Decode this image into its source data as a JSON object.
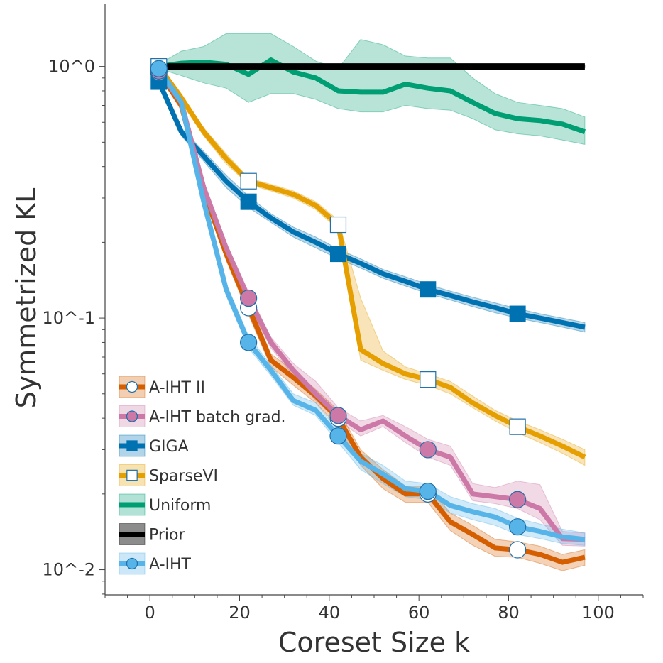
{
  "chart_data": {
    "type": "line",
    "xlabel": "Coreset Size k",
    "ylabel": "Symmetrized KL",
    "xlim": [
      -10,
      110
    ],
    "ylim_log10": [
      -2.1,
      0.25
    ],
    "y_scale": "log",
    "x_ticks": [
      0,
      20,
      40,
      60,
      80,
      100
    ],
    "x_tick_labels": [
      "0",
      "20",
      "40",
      "60",
      "80",
      "100"
    ],
    "y_ticks_log10": [
      0,
      -1,
      -2
    ],
    "y_tick_labels": [
      "10^0",
      "10^-1",
      "10^-2"
    ],
    "legend_position": "bottom-left",
    "series": [
      {
        "name": "Uniform",
        "color": "#009e73",
        "marker": "none",
        "x": [
          2,
          7,
          12,
          17,
          22,
          27,
          32,
          37,
          42,
          47,
          52,
          57,
          62,
          67,
          72,
          77,
          82,
          87,
          92,
          97
        ],
        "y": [
          1.0,
          1.03,
          1.04,
          1.02,
          0.93,
          1.06,
          0.95,
          0.9,
          0.8,
          0.79,
          0.79,
          0.85,
          0.82,
          0.8,
          0.72,
          0.65,
          0.62,
          0.61,
          0.59,
          0.55
        ],
        "y_low": [
          0.98,
          0.92,
          0.86,
          0.82,
          0.72,
          0.78,
          0.78,
          0.74,
          0.68,
          0.66,
          0.66,
          0.7,
          0.68,
          0.67,
          0.62,
          0.56,
          0.54,
          0.53,
          0.51,
          0.49
        ],
        "y_high": [
          1.02,
          1.15,
          1.2,
          1.35,
          1.35,
          1.35,
          1.2,
          1.05,
          0.98,
          1.28,
          1.22,
          1.1,
          1.08,
          1.08,
          0.9,
          0.78,
          0.72,
          0.7,
          0.68,
          0.63
        ],
        "marker_x": []
      },
      {
        "name": "Prior",
        "color": "#000000",
        "marker": "none",
        "x": [
          2,
          97
        ],
        "y": [
          1.0,
          1.0
        ],
        "y_low": [
          0.99,
          0.99
        ],
        "y_high": [
          1.01,
          1.01
        ],
        "marker_x": []
      },
      {
        "name": "GIGA",
        "color": "#0072b2",
        "marker": "square-filled",
        "x": [
          2,
          7,
          12,
          17,
          22,
          27,
          32,
          37,
          42,
          47,
          52,
          57,
          62,
          67,
          72,
          77,
          82,
          87,
          92,
          97
        ],
        "y": [
          0.87,
          0.55,
          0.44,
          0.35,
          0.29,
          0.25,
          0.22,
          0.2,
          0.18,
          0.165,
          0.15,
          0.14,
          0.13,
          0.123,
          0.116,
          0.11,
          0.104,
          0.1,
          0.096,
          0.092
        ],
        "y_low": [
          0.84,
          0.53,
          0.42,
          0.33,
          0.275,
          0.24,
          0.21,
          0.19,
          0.172,
          0.158,
          0.144,
          0.134,
          0.125,
          0.118,
          0.111,
          0.105,
          0.1,
          0.096,
          0.092,
          0.088
        ],
        "y_high": [
          0.9,
          0.57,
          0.46,
          0.37,
          0.305,
          0.26,
          0.23,
          0.21,
          0.188,
          0.172,
          0.156,
          0.146,
          0.136,
          0.128,
          0.121,
          0.115,
          0.109,
          0.104,
          0.1,
          0.096
        ],
        "marker_x": [
          2,
          22,
          42,
          62,
          82
        ]
      },
      {
        "name": "SparseVI",
        "color": "#e69f00",
        "marker": "square-open",
        "x": [
          2,
          7,
          12,
          17,
          22,
          27,
          32,
          37,
          42,
          47,
          52,
          57,
          62,
          67,
          72,
          77,
          82,
          87,
          92,
          97
        ],
        "y": [
          1.0,
          0.75,
          0.55,
          0.43,
          0.35,
          0.33,
          0.31,
          0.28,
          0.235,
          0.075,
          0.066,
          0.06,
          0.057,
          0.053,
          0.046,
          0.041,
          0.037,
          0.034,
          0.031,
          0.028
        ],
        "y_low": [
          0.97,
          0.72,
          0.53,
          0.41,
          0.34,
          0.32,
          0.3,
          0.27,
          0.225,
          0.068,
          0.062,
          0.057,
          0.054,
          0.05,
          0.044,
          0.039,
          0.035,
          0.032,
          0.029,
          0.026
        ],
        "y_high": [
          1.03,
          0.78,
          0.57,
          0.45,
          0.36,
          0.34,
          0.32,
          0.29,
          0.245,
          0.12,
          0.074,
          0.064,
          0.06,
          0.056,
          0.049,
          0.043,
          0.039,
          0.036,
          0.033,
          0.03
        ],
        "marker_x": [
          2,
          22,
          42,
          62,
          82
        ]
      },
      {
        "name": "A-IHT II",
        "color": "#d55e00",
        "marker": "circle-open",
        "x": [
          2,
          7,
          12,
          17,
          22,
          27,
          32,
          37,
          42,
          47,
          52,
          57,
          62,
          67,
          72,
          77,
          82,
          87,
          92,
          97
        ],
        "y": [
          0.95,
          0.7,
          0.32,
          0.18,
          0.11,
          0.068,
          0.058,
          0.049,
          0.04,
          0.028,
          0.023,
          0.02,
          0.02,
          0.0155,
          0.0138,
          0.0122,
          0.012,
          0.0115,
          0.0107,
          0.0112
        ],
        "y_low": [
          0.92,
          0.67,
          0.3,
          0.17,
          0.103,
          0.064,
          0.054,
          0.046,
          0.037,
          0.026,
          0.021,
          0.0185,
          0.0185,
          0.0143,
          0.0125,
          0.0113,
          0.0112,
          0.0106,
          0.0099,
          0.0104
        ],
        "y_high": [
          0.98,
          0.73,
          0.34,
          0.19,
          0.118,
          0.072,
          0.062,
          0.052,
          0.043,
          0.03,
          0.025,
          0.0215,
          0.0215,
          0.0168,
          0.015,
          0.0132,
          0.0129,
          0.0124,
          0.0115,
          0.012
        ],
        "marker_x": [
          2,
          22,
          42,
          62,
          82
        ]
      },
      {
        "name": "A-IHT batch grad.",
        "color": "#cc79a7",
        "marker": "circle-filled",
        "x": [
          2,
          7,
          12,
          17,
          22,
          27,
          32,
          37,
          42,
          47,
          52,
          57,
          62,
          67,
          72,
          77,
          82,
          87,
          92,
          97
        ],
        "y": [
          0.96,
          0.72,
          0.33,
          0.19,
          0.12,
          0.08,
          0.062,
          0.05,
          0.041,
          0.036,
          0.039,
          0.034,
          0.03,
          0.028,
          0.02,
          0.0195,
          0.019,
          0.0175,
          0.0133,
          0.0132
        ],
        "y_low": [
          0.93,
          0.69,
          0.31,
          0.18,
          0.113,
          0.076,
          0.059,
          0.047,
          0.039,
          0.034,
          0.037,
          0.032,
          0.028,
          0.026,
          0.0188,
          0.0183,
          0.0175,
          0.0158,
          0.0125,
          0.0124
        ],
        "y_high": [
          0.99,
          0.75,
          0.35,
          0.2,
          0.127,
          0.084,
          0.066,
          0.056,
          0.044,
          0.039,
          0.041,
          0.037,
          0.033,
          0.031,
          0.022,
          0.0212,
          0.0225,
          0.0218,
          0.0142,
          0.014
        ],
        "marker_x": [
          2,
          22,
          42,
          62,
          82
        ]
      },
      {
        "name": "A-IHT",
        "color": "#56b4e9",
        "marker": "circle-filled",
        "x": [
          2,
          7,
          12,
          17,
          22,
          27,
          32,
          37,
          42,
          47,
          52,
          57,
          62,
          67,
          72,
          77,
          82,
          87,
          92,
          97
        ],
        "y": [
          0.98,
          0.72,
          0.29,
          0.13,
          0.08,
          0.062,
          0.047,
          0.043,
          0.034,
          0.027,
          0.024,
          0.021,
          0.0205,
          0.018,
          0.017,
          0.0162,
          0.0148,
          0.0142,
          0.0135,
          0.0132
        ],
        "y_low": [
          0.95,
          0.69,
          0.27,
          0.123,
          0.076,
          0.059,
          0.045,
          0.041,
          0.032,
          0.025,
          0.022,
          0.0195,
          0.019,
          0.0168,
          0.0158,
          0.015,
          0.0138,
          0.0133,
          0.0127,
          0.0125
        ],
        "y_high": [
          1.01,
          0.75,
          0.31,
          0.137,
          0.085,
          0.065,
          0.05,
          0.046,
          0.036,
          0.029,
          0.026,
          0.0225,
          0.022,
          0.0195,
          0.0183,
          0.0175,
          0.016,
          0.0152,
          0.0145,
          0.014
        ],
        "marker_x": [
          2,
          22,
          42,
          62,
          82
        ]
      }
    ],
    "legend_order": [
      "A-IHT II",
      "A-IHT batch grad.",
      "GIGA",
      "SparseVI",
      "Uniform",
      "Prior",
      "A-IHT"
    ]
  }
}
